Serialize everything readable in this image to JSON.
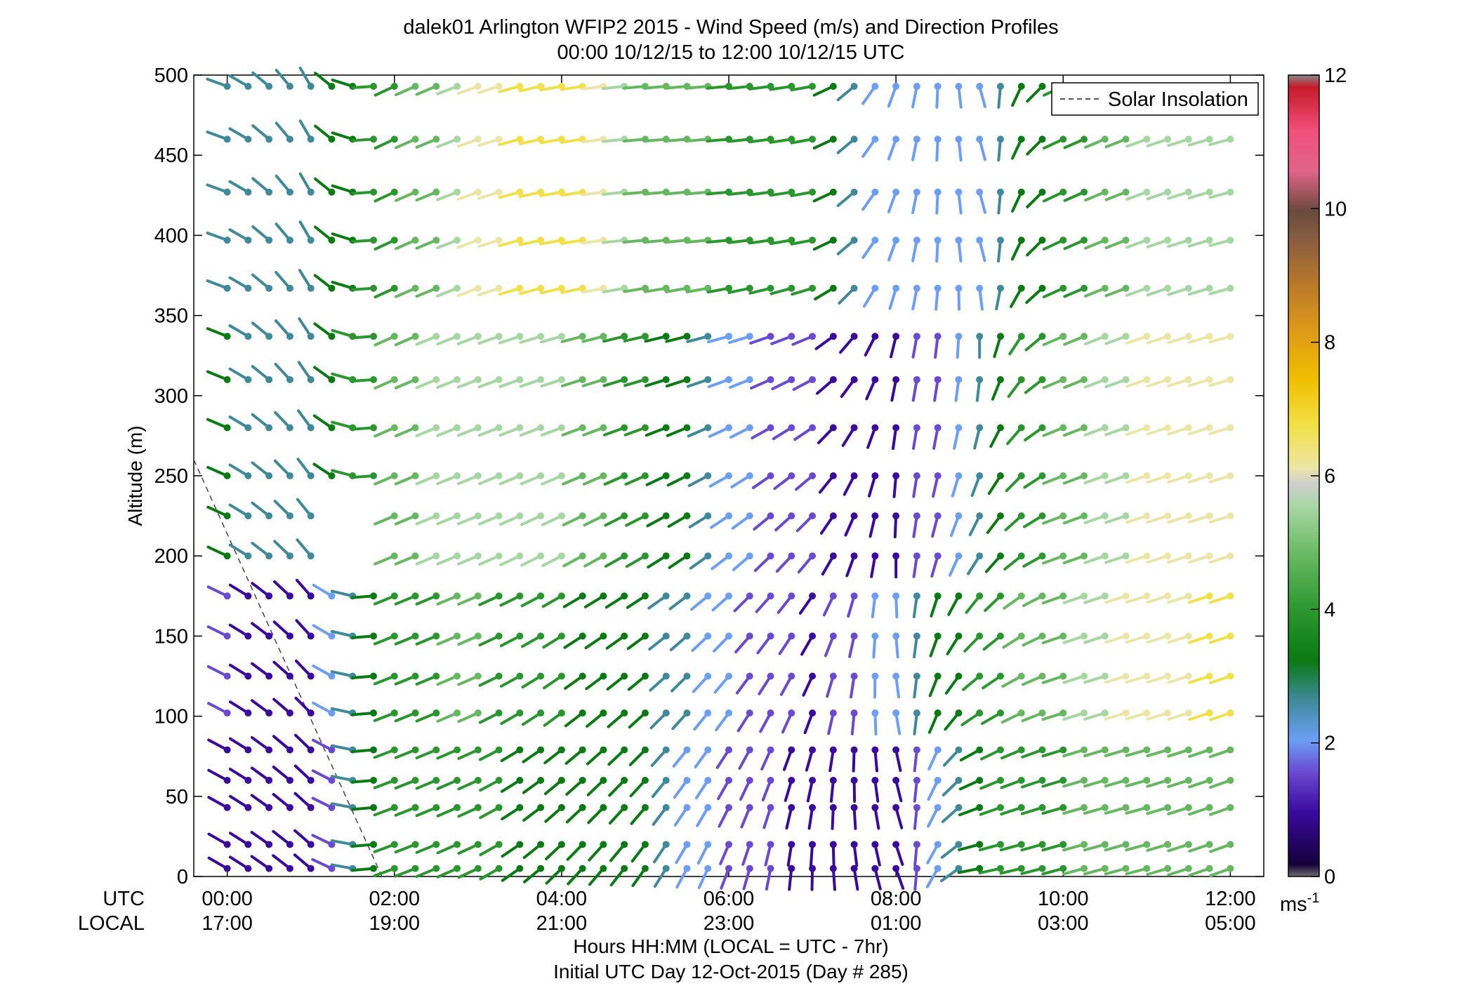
{
  "chart_data": {
    "type": "scatter",
    "title": "dalek01 Arlington WFIP2 2015 - Wind Speed (m/s) and Direction Profiles",
    "subtitle": "00:00 10/12/15 to 12:00 10/12/15  UTC",
    "ylabel": "Altitude (m)",
    "xlabel": "Hours HH:MM  (LOCAL = UTC - 7hr)",
    "xlabel2": "Initial UTC Day 12-Oct-2015 (Day # 285)",
    "xlim_hours": [
      -0.4,
      12.4
    ],
    "ylim": [
      0,
      500
    ],
    "yticks": [
      0,
      50,
      100,
      150,
      200,
      250,
      300,
      350,
      400,
      450,
      500
    ],
    "xrow_labels": {
      "utc": "UTC",
      "local": "LOCAL"
    },
    "xticks_utc": [
      "00:00",
      "02:00",
      "04:00",
      "06:00",
      "08:00",
      "10:00",
      "12:00"
    ],
    "xticks_local": [
      "17:00",
      "19:00",
      "21:00",
      "23:00",
      "01:00",
      "03:00",
      "05:00"
    ],
    "xtick_hours": [
      0,
      2,
      4,
      6,
      8,
      10,
      12
    ],
    "legend": {
      "entry": "Solar Insolation",
      "style": "dashed",
      "placement": "top-right"
    },
    "colorbar": {
      "min": 0,
      "max": 12,
      "ticks": [
        0,
        2,
        4,
        6,
        8,
        10,
        12
      ],
      "unit_label": "ms",
      "unit_exp": "-1"
    },
    "solar_insolation_line": {
      "x_hours": [
        -0.4,
        1.85
      ],
      "y_m": [
        260,
        0
      ]
    },
    "profile_heights_m": [
      5,
      20,
      43,
      60,
      79,
      102,
      125,
      150,
      175,
      200,
      225,
      250,
      280,
      310,
      337,
      367,
      397,
      427,
      460,
      493
    ],
    "wind_speed_ms_by_period": {
      "hours": [
        0,
        1,
        2,
        3,
        4,
        5,
        6,
        7,
        8,
        9,
        10,
        11,
        12
      ],
      "near_surface_0_100m": [
        1.3,
        1.2,
        4.2,
        4.4,
        3.4,
        3.2,
        1.9,
        1.0,
        1.3,
        3.8,
        4.7,
        5.2,
        5.4
      ],
      "low_level_100_200m": [
        1.4,
        1.2,
        4.6,
        4.9,
        4.0,
        3.5,
        2.0,
        1.2,
        2.3,
        4.2,
        5.4,
        6.6,
        6.8
      ],
      "mid_level_200_350m": [
        3.2,
        2.6,
        5.4,
        6.0,
        5.6,
        4.2,
        2.4,
        1.4,
        0.9,
        3.0,
        5.2,
        6.2,
        6.6
      ],
      "upper_level_350_500m": [
        2.8,
        3.0,
        4.6,
        6.4,
        7.2,
        5.4,
        4.6,
        4.0,
        2.0,
        2.4,
        4.4,
        5.6,
        5.8
      ]
    },
    "wind_direction_deg_by_period": {
      "hours": [
        0,
        1,
        2,
        3,
        4,
        5,
        6,
        7,
        8,
        9,
        10,
        11,
        12
      ],
      "near_surface": [
        300,
        310,
        250,
        245,
        225,
        215,
        200,
        180,
        160,
        260,
        255,
        255,
        250
      ],
      "upper": [
        290,
        330,
        245,
        250,
        260,
        265,
        265,
        260,
        200,
        165,
        245,
        250,
        255
      ]
    }
  }
}
